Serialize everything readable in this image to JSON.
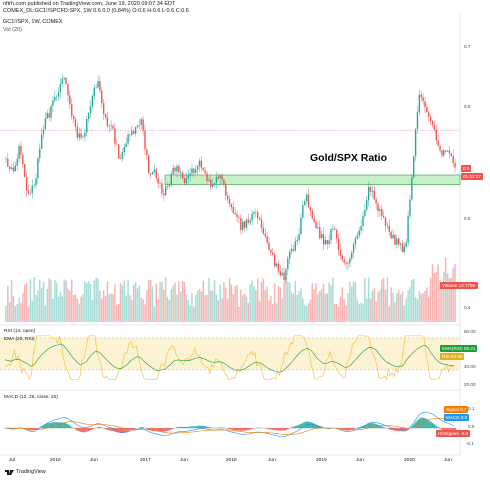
{
  "header": {
    "publisher_line": "nftrh.com published on TradingView.com, June 19, 2020 09:07:34 EDT",
    "symbol_line": "COMEX_DL:GC1!/SPCFD:SPX, 1W  0.6 0.0 (0.84%) O:0.6 H:0.6 L:0.6 C:0.6",
    "pane_title": "GC1!/SPX, 1W, COMEX",
    "vol_label": "Vol (20)"
  },
  "annotation": {
    "text": "Gold/SPX Ratio"
  },
  "price_axis": {
    "ticks": [
      "0.7",
      "0.6",
      "0.5",
      "0.4"
    ]
  },
  "price_tags": {
    "last": "0.6",
    "countdown": "01:02:27",
    "volume": "Volume  13.779K"
  },
  "rsi": {
    "title": "RSI (14, open)",
    "ema_title": "EMA (20, RSI)",
    "ticks": [
      "80.00",
      "60.00",
      "40.00",
      "20.00"
    ],
    "tag_ema": "EMA(RSI)",
    "tag_ema_val": "58.21",
    "tag_rsi": "RSI",
    "tag_rsi_val": "53.96",
    "colors": {
      "rsi": "#f4c542",
      "ema": "#1e9e3a",
      "band": "#fbf3d3"
    }
  },
  "macd": {
    "title": "MACD (12, 26, close, 20)",
    "ticks": [
      "0.1",
      "0.0",
      "-0.1"
    ],
    "tag_signal": "Signal",
    "tag_signal_val": "0.7",
    "tag_macd": "MACD",
    "tag_macd_val": "0.0",
    "tag_hist": "Histogram",
    "tag_hist_val": "-0.0",
    "colors": {
      "signal": "#f57c00",
      "macd": "#2196f3",
      "hist_up": "#26a69a",
      "hist_down": "#ef5350"
    }
  },
  "time_axis": {
    "labels": [
      "Jul",
      "2016",
      "Jun",
      "2017",
      "Jun",
      "2018",
      "Jun",
      "2019",
      "Jun",
      "2020",
      "Jun"
    ]
  },
  "footer": {
    "logo_text": "TradingView"
  },
  "colors": {
    "up": "#26a69a",
    "down": "#ef5350",
    "zone_fill": "#c8f0c8",
    "zone_stroke": "#2ea043"
  },
  "chart_data": {
    "type": "candlestick",
    "title": "Gold/SPX Ratio",
    "timeframe": "1W",
    "xlabel": "",
    "ylabel": "",
    "ylim": [
      0.37,
      0.72
    ],
    "x_ticks": [
      "Jul",
      "2016",
      "Jun",
      "2017",
      "Jun",
      "2018",
      "Jun",
      "2019",
      "Jun",
      "2020",
      "Jun"
    ],
    "approximate_close_path": [
      0.56,
      0.55,
      0.58,
      0.52,
      0.53,
      0.6,
      0.62,
      0.64,
      0.67,
      0.63,
      0.59,
      0.6,
      0.64,
      0.66,
      0.61,
      0.6,
      0.56,
      0.59,
      0.6,
      0.61,
      0.55,
      0.55,
      0.52,
      0.54,
      0.56,
      0.53,
      0.55,
      0.56,
      0.54,
      0.53,
      0.55,
      0.52,
      0.5,
      0.48,
      0.49,
      0.5,
      0.48,
      0.45,
      0.43,
      0.42,
      0.45,
      0.47,
      0.52,
      0.49,
      0.47,
      0.46,
      0.48,
      0.44,
      0.43,
      0.46,
      0.49,
      0.53,
      0.51,
      0.49,
      0.47,
      0.46,
      0.45,
      0.55,
      0.65,
      0.63,
      0.6,
      0.57,
      0.58,
      0.55
    ],
    "resistance_zone": [
      0.533,
      0.545
    ],
    "last_close": 0.6
  }
}
